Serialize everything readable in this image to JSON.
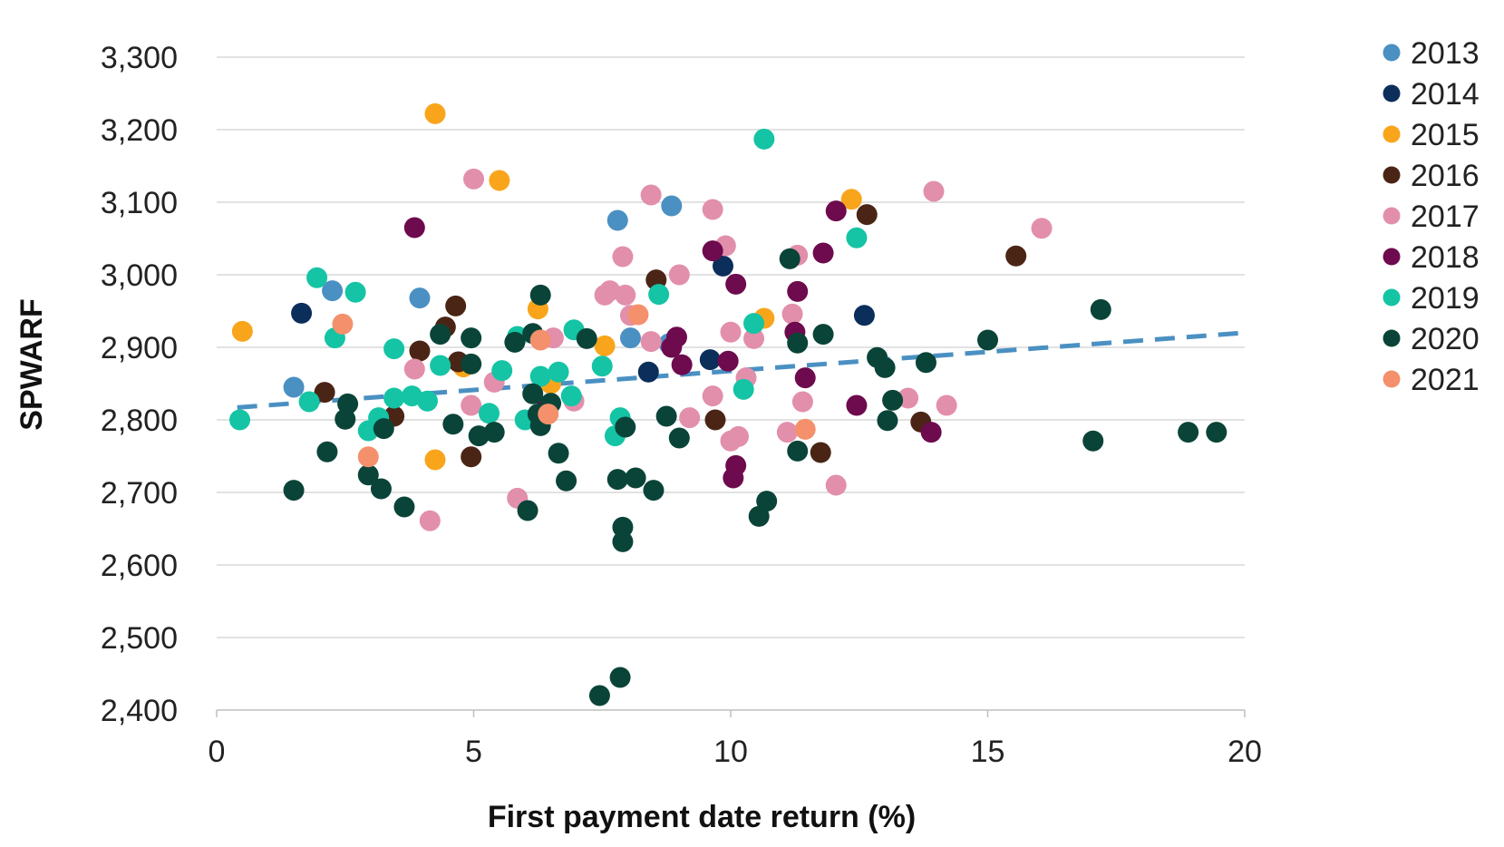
{
  "chart_data": {
    "type": "scatter",
    "title": "",
    "xlabel": "First payment date return (%)",
    "ylabel": "SPWARF",
    "xlim": [
      0,
      20
    ],
    "ylim": [
      2400,
      3300
    ],
    "x_ticks": [
      0,
      5,
      10,
      15,
      20
    ],
    "y_ticks": [
      2400,
      2500,
      2600,
      2700,
      2800,
      2900,
      3000,
      3100,
      3200,
      3300
    ],
    "x_tick_labels": [
      "0",
      "5",
      "10",
      "15",
      "20"
    ],
    "y_tick_labels": [
      "2,400",
      "2,500",
      "2,600",
      "2,700",
      "2,800",
      "2,900",
      "3,000",
      "3,100",
      "3,200",
      "3,300"
    ],
    "grid": "horizontal",
    "legend_position": "right",
    "trendline": {
      "style": "dashed",
      "color": "#4a90c2",
      "x": [
        0.4,
        20
      ],
      "y": [
        2817,
        2920
      ]
    },
    "series": [
      {
        "name": "2013",
        "color": "#4a90c2",
        "points": [
          [
            1.5,
            2845
          ],
          [
            2.25,
            2978
          ],
          [
            3.95,
            2968
          ],
          [
            7.8,
            3075
          ],
          [
            8.05,
            2913
          ],
          [
            8.85,
            3095
          ],
          [
            8.8,
            2905
          ]
        ]
      },
      {
        "name": "2014",
        "color": "#0b2e5b",
        "points": [
          [
            1.65,
            2947
          ],
          [
            8.4,
            2866
          ],
          [
            9.6,
            2883
          ],
          [
            9.85,
            3012
          ],
          [
            12.6,
            2944
          ]
        ]
      },
      {
        "name": "2015",
        "color": "#f9a51b",
        "points": [
          [
            0.5,
            2922
          ],
          [
            4.25,
            3222
          ],
          [
            4.25,
            2745
          ],
          [
            4.8,
            2873
          ],
          [
            5.5,
            3130
          ],
          [
            6.25,
            2953
          ],
          [
            6.5,
            2850
          ],
          [
            7.55,
            2902
          ],
          [
            10.65,
            2940
          ],
          [
            12.35,
            3104
          ]
        ]
      },
      {
        "name": "2016",
        "color": "#4a2515",
        "points": [
          [
            2.1,
            2838
          ],
          [
            3.45,
            2805
          ],
          [
            3.95,
            2895
          ],
          [
            4.45,
            2928
          ],
          [
            4.65,
            2957
          ],
          [
            4.7,
            2880
          ],
          [
            4.95,
            2749
          ],
          [
            8.55,
            2993
          ],
          [
            9.7,
            2800
          ],
          [
            11.75,
            2755
          ],
          [
            12.65,
            3083
          ],
          [
            13.7,
            2797
          ],
          [
            15.55,
            3026
          ]
        ]
      },
      {
        "name": "2017",
        "color": "#e28fab",
        "points": [
          [
            3.85,
            2870
          ],
          [
            4.15,
            2661
          ],
          [
            5.0,
            3132
          ],
          [
            4.95,
            2820
          ],
          [
            5.4,
            2852
          ],
          [
            5.85,
            2692
          ],
          [
            6.55,
            2913
          ],
          [
            6.95,
            2826
          ],
          [
            7.55,
            2972
          ],
          [
            7.65,
            2978
          ],
          [
            7.9,
            3025
          ],
          [
            7.95,
            2972
          ],
          [
            8.05,
            2944
          ],
          [
            8.45,
            3110
          ],
          [
            8.45,
            2908
          ],
          [
            9.0,
            3000
          ],
          [
            9.2,
            2803
          ],
          [
            9.65,
            3090
          ],
          [
            9.65,
            2833
          ],
          [
            9.9,
            3040
          ],
          [
            10.0,
            2921
          ],
          [
            10.0,
            2771
          ],
          [
            10.15,
            2777
          ],
          [
            10.3,
            2858
          ],
          [
            10.45,
            2912
          ],
          [
            11.1,
            2783
          ],
          [
            11.2,
            2946
          ],
          [
            11.3,
            3027
          ],
          [
            11.4,
            2825
          ],
          [
            12.05,
            2710
          ],
          [
            13.45,
            2830
          ],
          [
            13.95,
            3115
          ],
          [
            14.2,
            2820
          ],
          [
            16.05,
            3064
          ]
        ]
      },
      {
        "name": "2018",
        "color": "#6e0a4e",
        "points": [
          [
            3.85,
            3065
          ],
          [
            6.4,
            2815
          ],
          [
            8.85,
            2900
          ],
          [
            8.95,
            2914
          ],
          [
            9.05,
            2876
          ],
          [
            9.65,
            3033
          ],
          [
            9.95,
            2881
          ],
          [
            10.05,
            2720
          ],
          [
            10.1,
            2737
          ],
          [
            10.1,
            2987
          ],
          [
            11.25,
            2921
          ],
          [
            11.3,
            2977
          ],
          [
            11.45,
            2858
          ],
          [
            11.8,
            3030
          ],
          [
            12.05,
            3088
          ],
          [
            12.45,
            2820
          ],
          [
            13.9,
            2783
          ]
        ]
      },
      {
        "name": "2019",
        "color": "#14c4a4",
        "points": [
          [
            0.45,
            2800
          ],
          [
            1.8,
            2825
          ],
          [
            1.95,
            2996
          ],
          [
            2.3,
            2913
          ],
          [
            2.7,
            2976
          ],
          [
            2.95,
            2785
          ],
          [
            3.15,
            2803
          ],
          [
            3.45,
            2830
          ],
          [
            3.45,
            2898
          ],
          [
            3.8,
            2833
          ],
          [
            4.1,
            2826
          ],
          [
            4.35,
            2875
          ],
          [
            5.3,
            2809
          ],
          [
            5.55,
            2868
          ],
          [
            5.85,
            2915
          ],
          [
            6.0,
            2800
          ],
          [
            6.3,
            2860
          ],
          [
            6.65,
            2866
          ],
          [
            6.9,
            2833
          ],
          [
            6.95,
            2924
          ],
          [
            7.5,
            2874
          ],
          [
            7.75,
            2778
          ],
          [
            7.85,
            2803
          ],
          [
            8.6,
            2973
          ],
          [
            10.25,
            2842
          ],
          [
            10.45,
            2933
          ],
          [
            10.65,
            3187
          ],
          [
            12.45,
            3051
          ]
        ]
      },
      {
        "name": "2020",
        "color": "#0a4438",
        "points": [
          [
            1.5,
            2703
          ],
          [
            2.15,
            2756
          ],
          [
            2.55,
            2822
          ],
          [
            2.5,
            2801
          ],
          [
            2.95,
            2724
          ],
          [
            3.2,
            2705
          ],
          [
            3.25,
            2788
          ],
          [
            3.65,
            2680
          ],
          [
            4.35,
            2918
          ],
          [
            4.6,
            2794
          ],
          [
            4.95,
            2913
          ],
          [
            4.95,
            2877
          ],
          [
            5.1,
            2778
          ],
          [
            5.4,
            2783
          ],
          [
            5.8,
            2907
          ],
          [
            6.05,
            2675
          ],
          [
            6.15,
            2919
          ],
          [
            6.15,
            2836
          ],
          [
            6.25,
            2808
          ],
          [
            6.3,
            2792
          ],
          [
            6.3,
            2972
          ],
          [
            6.5,
            2823
          ],
          [
            6.65,
            2754
          ],
          [
            6.8,
            2716
          ],
          [
            7.2,
            2912
          ],
          [
            7.45,
            2420
          ],
          [
            7.8,
            2718
          ],
          [
            7.85,
            2445
          ],
          [
            7.9,
            2652
          ],
          [
            7.9,
            2632
          ],
          [
            7.95,
            2790
          ],
          [
            8.15,
            2720
          ],
          [
            8.5,
            2703
          ],
          [
            8.75,
            2805
          ],
          [
            9.0,
            2775
          ],
          [
            10.55,
            2667
          ],
          [
            10.7,
            2688
          ],
          [
            11.15,
            3022
          ],
          [
            11.3,
            2757
          ],
          [
            11.3,
            2906
          ],
          [
            11.8,
            2918
          ],
          [
            12.85,
            2886
          ],
          [
            13.0,
            2872
          ],
          [
            13.05,
            2799
          ],
          [
            13.15,
            2827
          ],
          [
            13.8,
            2879
          ],
          [
            15.0,
            2910
          ],
          [
            17.05,
            2771
          ],
          [
            17.2,
            2952
          ],
          [
            18.9,
            2783
          ],
          [
            19.45,
            2783
          ]
        ]
      },
      {
        "name": "2021",
        "color": "#f4906c",
        "points": [
          [
            2.45,
            2932
          ],
          [
            2.95,
            2749
          ],
          [
            6.3,
            2910
          ],
          [
            6.45,
            2808
          ],
          [
            8.2,
            2945
          ],
          [
            11.45,
            2787
          ]
        ]
      }
    ]
  }
}
